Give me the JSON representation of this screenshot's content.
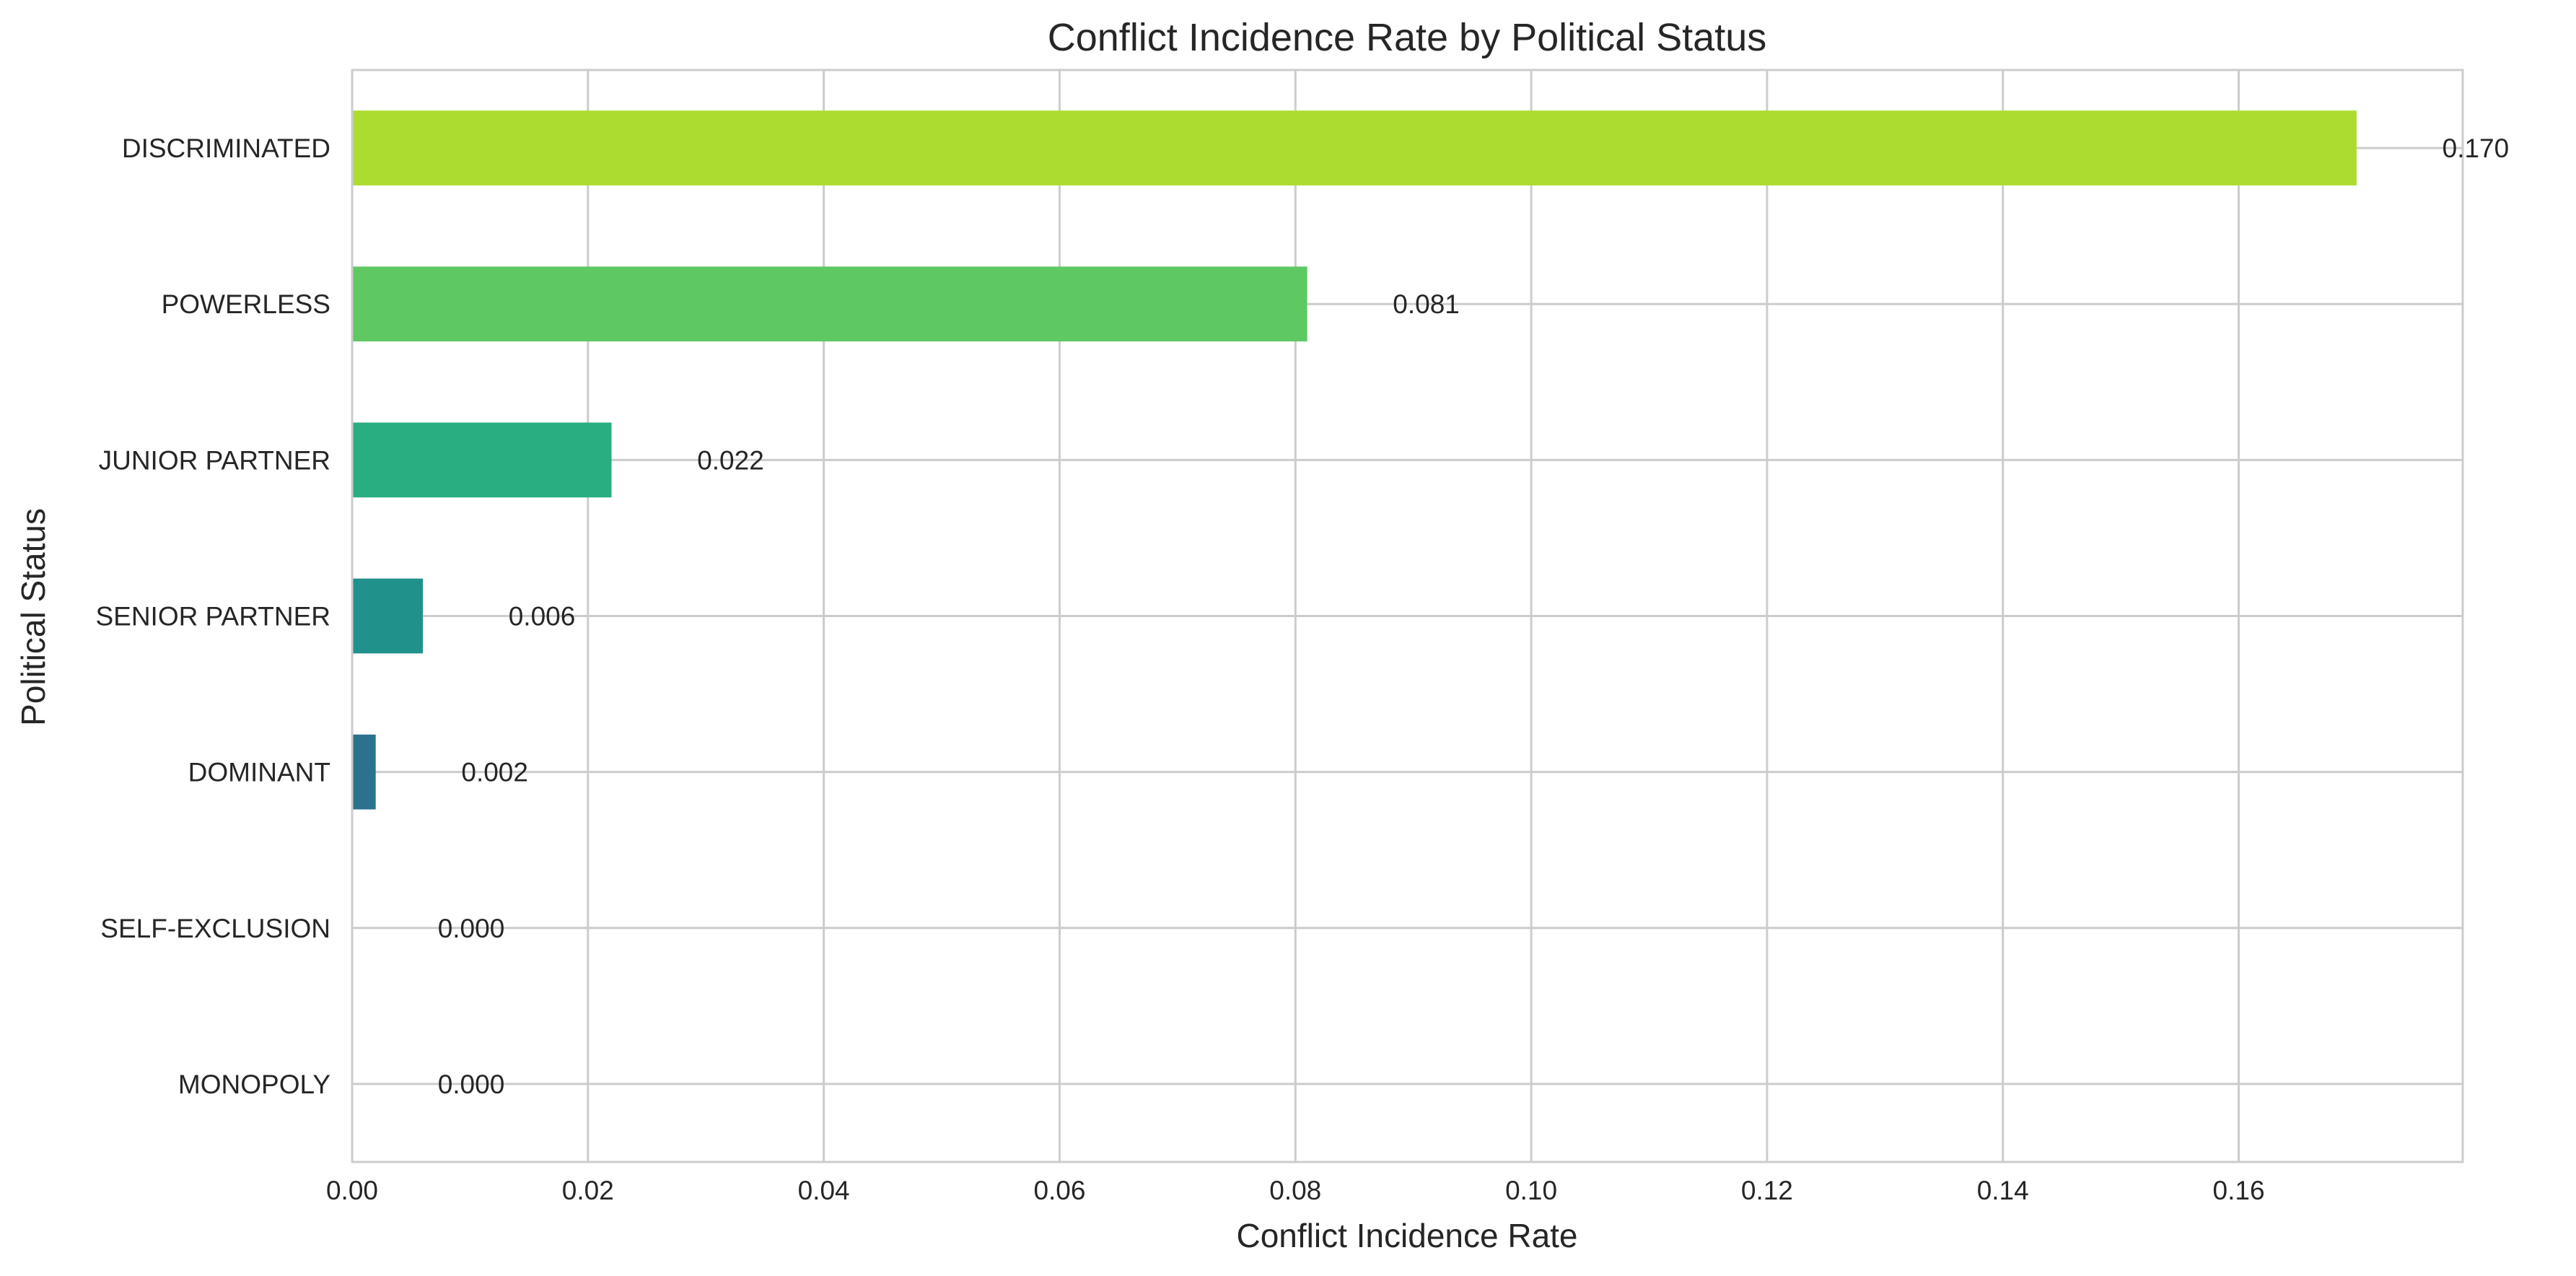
{
  "chart_data": {
    "type": "bar",
    "orientation": "horizontal",
    "title": "Conflict Incidence Rate by Political Status",
    "xlabel": "Conflict Incidence Rate",
    "ylabel": "Political Status",
    "xlim": [
      0,
      0.179
    ],
    "x_ticks": [
      0.0,
      0.02,
      0.04,
      0.06,
      0.08,
      0.1,
      0.12,
      0.14,
      0.16
    ],
    "x_tick_labels": [
      "0.00",
      "0.02",
      "0.04",
      "0.06",
      "0.08",
      "0.10",
      "0.12",
      "0.14",
      "0.16"
    ],
    "grid": true,
    "categories": [
      "DISCRIMINATED",
      "POWERLESS",
      "JUNIOR PARTNER",
      "SENIOR PARTNER",
      "DOMINANT",
      "SELF-EXCLUSION",
      "MONOPOLY"
    ],
    "values": [
      0.17,
      0.081,
      0.022,
      0.006,
      0.002,
      0.0,
      0.0
    ],
    "value_labels": [
      "0.170",
      "0.081",
      "0.022",
      "0.006",
      "0.002",
      "0.000",
      "0.000"
    ],
    "colors": [
      "#addc30",
      "#5ec962",
      "#28ae80",
      "#21918c",
      "#2c728e",
      "#3b528b",
      "#472d7b"
    ]
  }
}
